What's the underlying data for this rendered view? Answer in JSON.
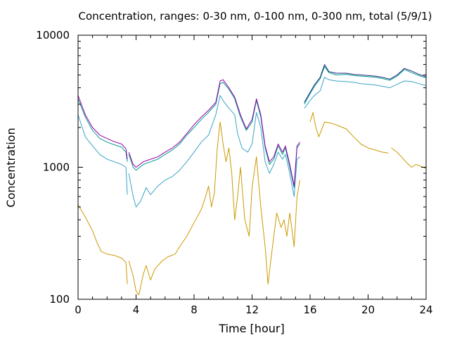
{
  "chart_data": {
    "type": "line",
    "title": "Concentration, ranges: 0-30 nm, 0-100 nm, 0-300 nm, total (5/9/1)",
    "xlabel": "Time [hour]",
    "ylabel": "Concentration",
    "xlim": [
      0,
      24
    ],
    "ylim": [
      100,
      10000
    ],
    "yscale": "log",
    "grid": false,
    "legend": "none",
    "x_ticks": [
      0,
      4,
      8,
      12,
      16,
      20,
      24
    ],
    "x_tick_labels": [
      "0",
      "4",
      "8",
      "12",
      "16",
      "20",
      "24"
    ],
    "y_ticks": [
      100,
      1000,
      10000
    ],
    "y_tick_labels": [
      "100",
      "1000",
      "10000"
    ],
    "series": [
      {
        "color": "#cc9900",
        "segments": [
          [
            [
              0.0,
              520
            ],
            [
              0.5,
              420
            ],
            [
              1.0,
              330
            ],
            [
              1.3,
              270
            ],
            [
              1.6,
              230
            ],
            [
              2.0,
              220
            ],
            [
              2.5,
              215
            ],
            [
              3.0,
              205
            ],
            [
              3.3,
              190
            ],
            [
              3.4,
              130
            ]
          ],
          [
            [
              3.5,
              195
            ],
            [
              3.8,
              150
            ],
            [
              4.0,
              115
            ],
            [
              4.2,
              108
            ],
            [
              4.5,
              155
            ],
            [
              4.7,
              180
            ],
            [
              5.0,
              140
            ],
            [
              5.3,
              170
            ],
            [
              5.8,
              195
            ],
            [
              6.2,
              210
            ],
            [
              6.7,
              220
            ],
            [
              7.0,
              250
            ],
            [
              7.5,
              300
            ],
            [
              8.0,
              380
            ],
            [
              8.5,
              480
            ],
            [
              8.8,
              600
            ],
            [
              9.0,
              720
            ],
            [
              9.2,
              500
            ],
            [
              9.4,
              640
            ],
            [
              9.6,
              1400
            ],
            [
              9.8,
              2200
            ],
            [
              10.0,
              1500
            ],
            [
              10.2,
              1100
            ],
            [
              10.4,
              1400
            ],
            [
              10.6,
              900
            ],
            [
              10.8,
              400
            ],
            [
              11.0,
              600
            ],
            [
              11.2,
              1000
            ],
            [
              11.5,
              400
            ],
            [
              11.8,
              300
            ],
            [
              12.0,
              700
            ],
            [
              12.3,
              1200
            ],
            [
              12.6,
              500
            ],
            [
              12.9,
              250
            ],
            [
              13.1,
              130
            ],
            [
              13.3,
              200
            ],
            [
              13.5,
              300
            ],
            [
              13.7,
              450
            ],
            [
              14.0,
              350
            ],
            [
              14.2,
              400
            ],
            [
              14.4,
              300
            ],
            [
              14.6,
              450
            ],
            [
              14.9,
              250
            ],
            [
              15.1,
              600
            ],
            [
              15.3,
              800
            ]
          ],
          [
            [
              16.0,
              2200
            ],
            [
              16.2,
              2600
            ],
            [
              16.4,
              2000
            ],
            [
              16.6,
              1700
            ],
            [
              17.0,
              2200
            ],
            [
              17.5,
              2150
            ],
            [
              18.0,
              2050
            ],
            [
              18.5,
              1950
            ],
            [
              19.0,
              1700
            ],
            [
              19.5,
              1500
            ],
            [
              20.0,
              1400
            ],
            [
              20.5,
              1350
            ],
            [
              21.0,
              1300
            ],
            [
              21.4,
              1280
            ]
          ],
          [
            [
              21.6,
              1400
            ],
            [
              22.0,
              1300
            ],
            [
              22.3,
              1200
            ],
            [
              22.6,
              1100
            ],
            [
              23.0,
              1000
            ],
            [
              23.3,
              1050
            ],
            [
              23.6,
              1020
            ],
            [
              24.0,
              980
            ]
          ]
        ]
      },
      {
        "color": "#3aa4c4",
        "segments": [
          [
            [
              0.0,
              2500
            ],
            [
              0.5,
              1700
            ],
            [
              1.0,
              1450
            ],
            [
              1.5,
              1250
            ],
            [
              2.0,
              1150
            ],
            [
              2.5,
              1100
            ],
            [
              3.0,
              1050
            ],
            [
              3.3,
              1000
            ],
            [
              3.4,
              620
            ]
          ],
          [
            [
              3.5,
              900
            ],
            [
              3.8,
              600
            ],
            [
              4.0,
              500
            ],
            [
              4.3,
              550
            ],
            [
              4.7,
              700
            ],
            [
              5.0,
              620
            ],
            [
              5.5,
              720
            ],
            [
              6.0,
              800
            ],
            [
              6.5,
              850
            ],
            [
              7.0,
              950
            ],
            [
              7.5,
              1100
            ],
            [
              8.0,
              1300
            ],
            [
              8.5,
              1550
            ],
            [
              9.0,
              1750
            ],
            [
              9.5,
              2500
            ],
            [
              9.8,
              3500
            ],
            [
              10.0,
              3200
            ],
            [
              10.4,
              2800
            ],
            [
              10.8,
              2500
            ],
            [
              11.0,
              1800
            ],
            [
              11.3,
              1400
            ],
            [
              11.7,
              1300
            ],
            [
              12.0,
              1500
            ],
            [
              12.3,
              2600
            ],
            [
              12.6,
              2000
            ],
            [
              12.9,
              1100
            ],
            [
              13.2,
              900
            ],
            [
              13.5,
              1050
            ],
            [
              13.8,
              1300
            ],
            [
              14.1,
              1150
            ],
            [
              14.3,
              1250
            ],
            [
              14.6,
              900
            ],
            [
              14.9,
              600
            ],
            [
              15.1,
              1150
            ],
            [
              15.3,
              1200
            ]
          ],
          [
            [
              15.6,
              2800
            ],
            [
              16.0,
              3200
            ],
            [
              16.3,
              3500
            ],
            [
              16.7,
              3800
            ],
            [
              17.0,
              4800
            ],
            [
              17.3,
              4600
            ],
            [
              17.8,
              4500
            ],
            [
              18.5,
              4450
            ],
            [
              19.0,
              4400
            ],
            [
              19.5,
              4300
            ],
            [
              20.0,
              4250
            ],
            [
              20.5,
              4200
            ],
            [
              21.0,
              4100
            ],
            [
              21.5,
              4000
            ],
            [
              22.0,
              4250
            ],
            [
              22.5,
              4500
            ],
            [
              23.0,
              4450
            ],
            [
              23.5,
              4300
            ],
            [
              24.0,
              4150
            ]
          ]
        ]
      },
      {
        "color": "#009e8e",
        "segments": [
          [
            [
              0.0,
              3300
            ],
            [
              0.5,
              2400
            ],
            [
              1.0,
              1900
            ],
            [
              1.5,
              1650
            ],
            [
              2.0,
              1550
            ],
            [
              2.5,
              1480
            ],
            [
              3.0,
              1420
            ],
            [
              3.3,
              1300
            ],
            [
              3.4,
              1100
            ]
          ],
          [
            [
              3.5,
              1250
            ],
            [
              3.8,
              1000
            ],
            [
              4.0,
              950
            ],
            [
              4.5,
              1050
            ],
            [
              5.0,
              1100
            ],
            [
              5.5,
              1150
            ],
            [
              6.0,
              1250
            ],
            [
              6.5,
              1350
            ],
            [
              7.0,
              1500
            ],
            [
              7.5,
              1750
            ],
            [
              8.0,
              2000
            ],
            [
              8.5,
              2300
            ],
            [
              9.0,
              2600
            ],
            [
              9.5,
              3000
            ],
            [
              9.8,
              4300
            ],
            [
              10.0,
              4400
            ],
            [
              10.4,
              3900
            ],
            [
              10.8,
              3300
            ],
            [
              11.2,
              2400
            ],
            [
              11.6,
              1900
            ],
            [
              12.0,
              2200
            ],
            [
              12.3,
              3200
            ],
            [
              12.6,
              2400
            ],
            [
              12.9,
              1400
            ],
            [
              13.2,
              1050
            ],
            [
              13.5,
              1150
            ],
            [
              13.8,
              1450
            ],
            [
              14.1,
              1250
            ],
            [
              14.3,
              1400
            ],
            [
              14.6,
              1000
            ],
            [
              14.9,
              700
            ],
            [
              15.1,
              1400
            ],
            [
              15.3,
              1500
            ]
          ],
          [
            [
              15.6,
              3000
            ],
            [
              16.0,
              3600
            ],
            [
              16.3,
              4100
            ],
            [
              16.7,
              4700
            ],
            [
              17.0,
              5800
            ],
            [
              17.3,
              5200
            ],
            [
              17.8,
              5000
            ],
            [
              18.5,
              5050
            ],
            [
              19.0,
              4950
            ],
            [
              19.5,
              4900
            ],
            [
              20.0,
              4850
            ],
            [
              20.5,
              4800
            ],
            [
              21.0,
              4700
            ],
            [
              21.5,
              4550
            ],
            [
              22.0,
              4900
            ],
            [
              22.5,
              5500
            ],
            [
              23.0,
              5200
            ],
            [
              23.5,
              4950
            ],
            [
              24.0,
              4750
            ]
          ]
        ]
      },
      {
        "color": "#9400a8",
        "segments": [
          [
            [
              0.0,
              3500
            ],
            [
              0.5,
              2500
            ],
            [
              1.0,
              2000
            ],
            [
              1.5,
              1750
            ],
            [
              2.0,
              1650
            ],
            [
              2.5,
              1560
            ],
            [
              3.0,
              1500
            ],
            [
              3.3,
              1380
            ],
            [
              3.4,
              1150
            ]
          ],
          [
            [
              3.5,
              1300
            ],
            [
              3.8,
              1050
            ],
            [
              4.0,
              1000
            ],
            [
              4.5,
              1100
            ],
            [
              5.0,
              1150
            ],
            [
              5.5,
              1200
            ],
            [
              6.0,
              1300
            ],
            [
              6.5,
              1400
            ],
            [
              7.0,
              1550
            ],
            [
              7.5,
              1800
            ],
            [
              8.0,
              2100
            ],
            [
              8.5,
              2400
            ],
            [
              9.0,
              2700
            ],
            [
              9.5,
              3100
            ],
            [
              9.8,
              4500
            ],
            [
              10.0,
              4600
            ],
            [
              10.4,
              4000
            ],
            [
              10.8,
              3400
            ],
            [
              11.2,
              2500
            ],
            [
              11.6,
              1950
            ],
            [
              12.0,
              2300
            ],
            [
              12.3,
              3300
            ],
            [
              12.6,
              2500
            ],
            [
              12.9,
              1450
            ],
            [
              13.2,
              1100
            ],
            [
              13.5,
              1200
            ],
            [
              13.8,
              1500
            ],
            [
              14.1,
              1300
            ],
            [
              14.3,
              1450
            ],
            [
              14.6,
              1050
            ],
            [
              14.9,
              720
            ],
            [
              15.1,
              1450
            ],
            [
              15.3,
              1550
            ]
          ]
        ]
      },
      {
        "color": "#1f2a80",
        "segments": [
          [
            [
              15.6,
              3100
            ],
            [
              16.0,
              3700
            ],
            [
              16.3,
              4200
            ],
            [
              16.7,
              4800
            ],
            [
              17.0,
              6000
            ],
            [
              17.3,
              5300
            ],
            [
              17.8,
              5150
            ],
            [
              18.5,
              5150
            ],
            [
              19.0,
              5050
            ],
            [
              19.5,
              5000
            ],
            [
              20.0,
              4950
            ],
            [
              20.5,
              4900
            ],
            [
              21.0,
              4800
            ],
            [
              21.5,
              4650
            ],
            [
              22.0,
              5000
            ],
            [
              22.5,
              5600
            ],
            [
              23.0,
              5350
            ],
            [
              23.5,
              5050
            ],
            [
              24.0,
              4850
            ]
          ]
        ]
      }
    ]
  }
}
